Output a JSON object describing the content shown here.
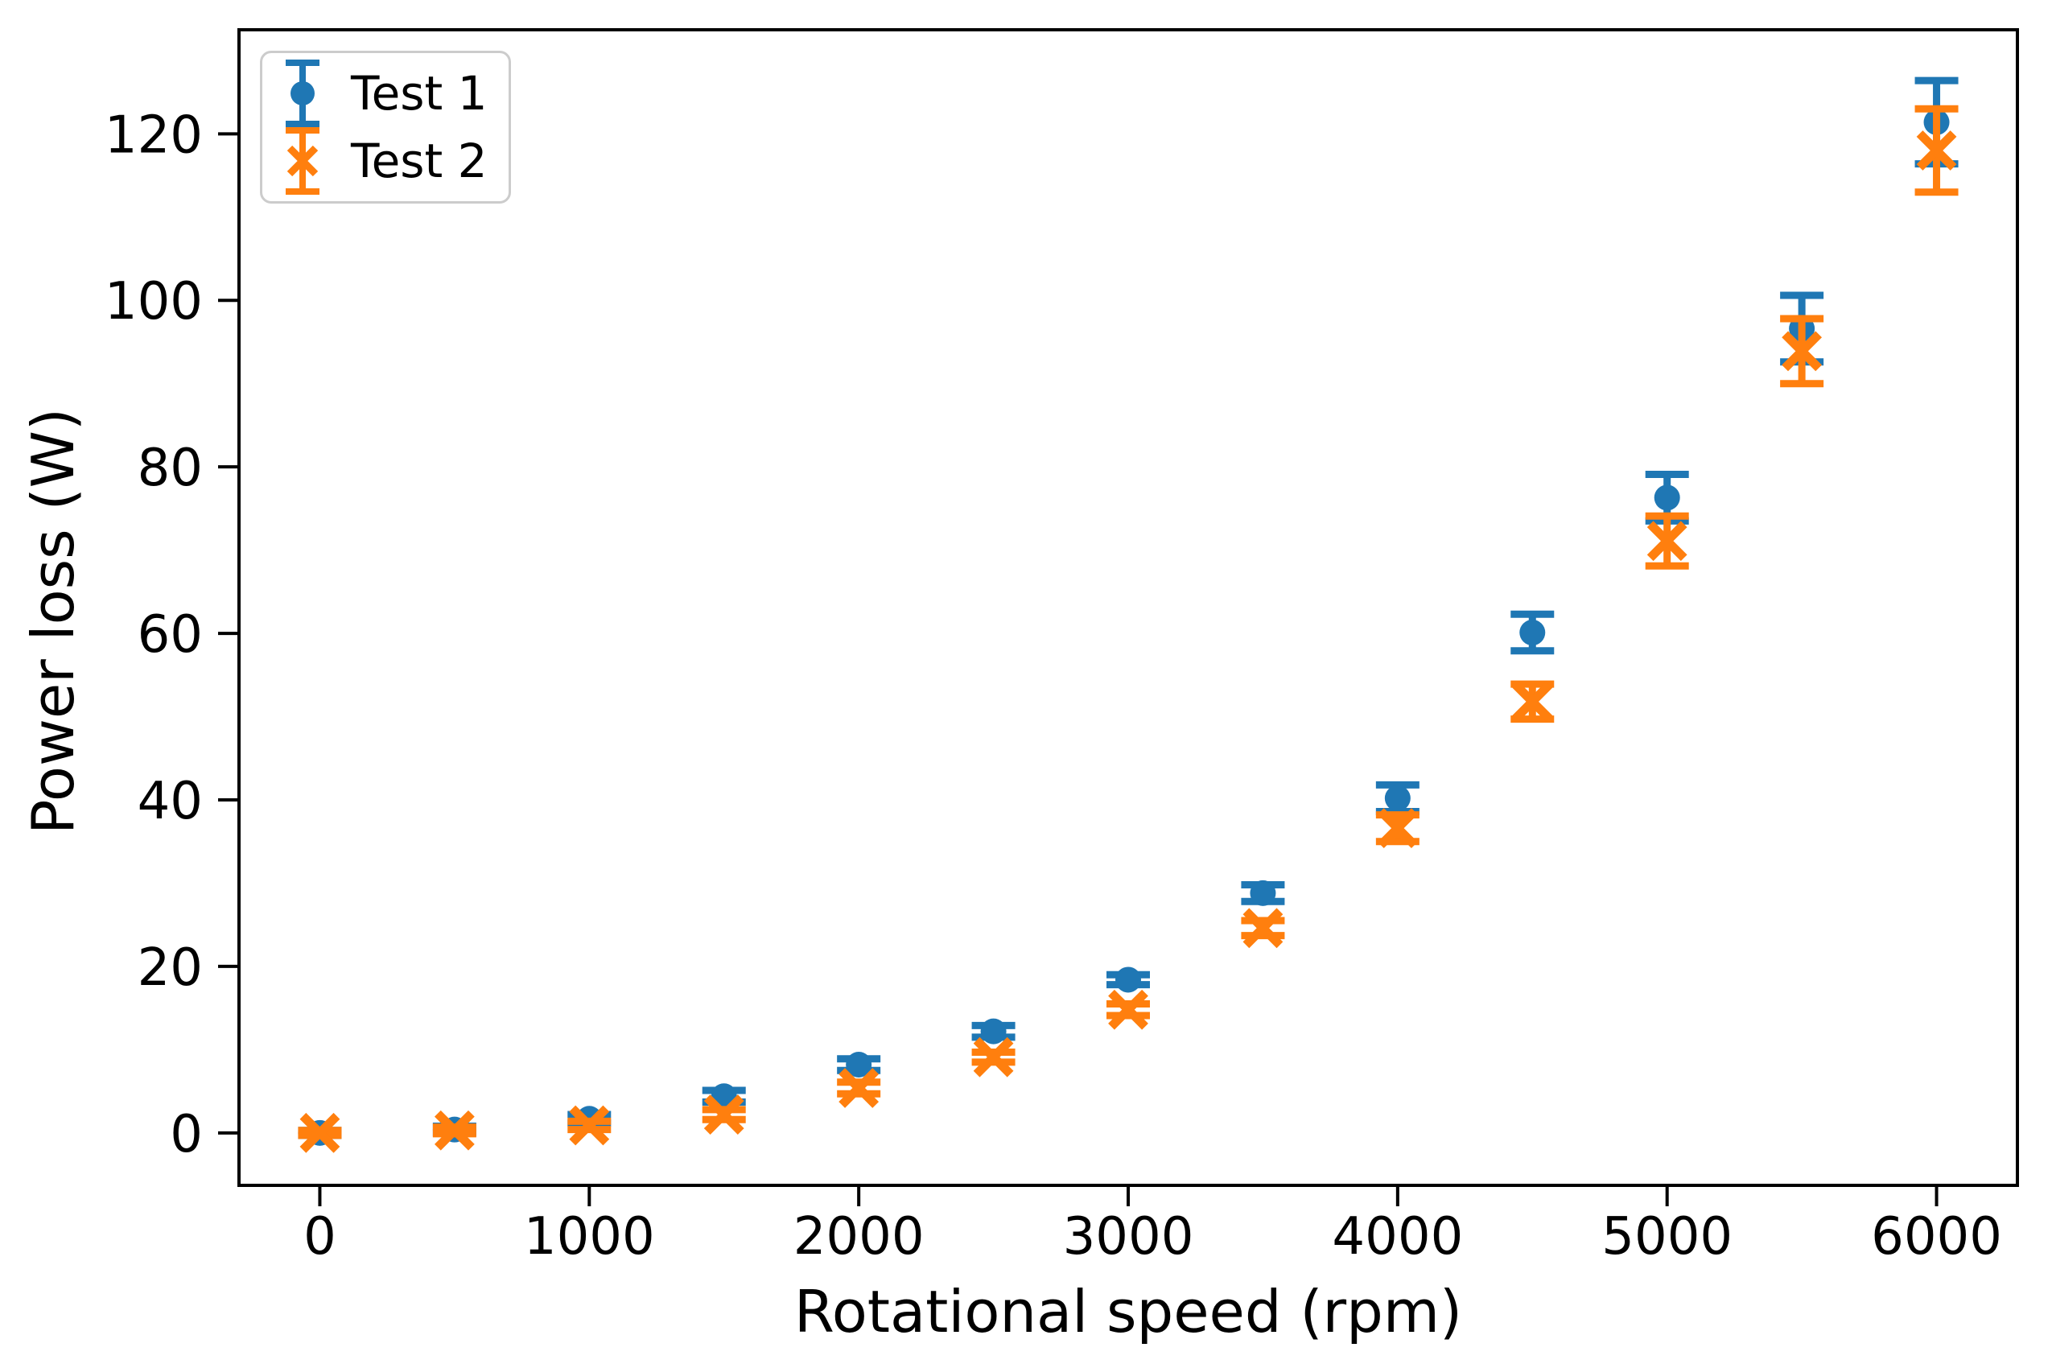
{
  "chart_data": {
    "type": "scatter",
    "title": "",
    "xlabel": "Rotational speed (rpm)",
    "ylabel": "Power loss (W)",
    "grid": false,
    "legend_position": "upper left",
    "background_color": "#ffffff",
    "axis_color": "#000000",
    "x_ticks": [
      0,
      1000,
      2000,
      3000,
      4000,
      5000,
      6000
    ],
    "y_ticks": [
      0,
      20,
      40,
      60,
      80,
      100,
      120
    ],
    "xlim": [
      -300,
      6300
    ],
    "ylim": [
      -6.3,
      132.5
    ],
    "x": [
      0,
      500,
      1000,
      1500,
      2000,
      2500,
      3000,
      3500,
      4000,
      4500,
      5000,
      5500,
      6000
    ],
    "series": [
      {
        "name": "Test 1",
        "marker": "circle",
        "color": "#1f77b4",
        "y": [
          0,
          0.4,
          1.7,
          4.4,
          8.2,
          12.2,
          18.4,
          28.8,
          40.2,
          60.1,
          76.3,
          96.6,
          121.4
        ],
        "yerr": [
          0.3,
          0.4,
          0.5,
          0.7,
          0.7,
          0.7,
          0.6,
          1.0,
          1.6,
          2.2,
          2.8,
          4.0,
          5.0
        ]
      },
      {
        "name": "Test 2",
        "marker": "x",
        "color": "#ff7f0e",
        "y": [
          0,
          0.3,
          0.9,
          2.2,
          5.4,
          9.1,
          14.8,
          24.6,
          36.6,
          51.8,
          71.1,
          93.9,
          118.0
        ],
        "yerr": [
          0.3,
          0.4,
          0.5,
          0.6,
          0.7,
          0.6,
          0.7,
          0.9,
          1.6,
          2.1,
          3.0,
          3.9,
          5.0
        ]
      }
    ]
  }
}
